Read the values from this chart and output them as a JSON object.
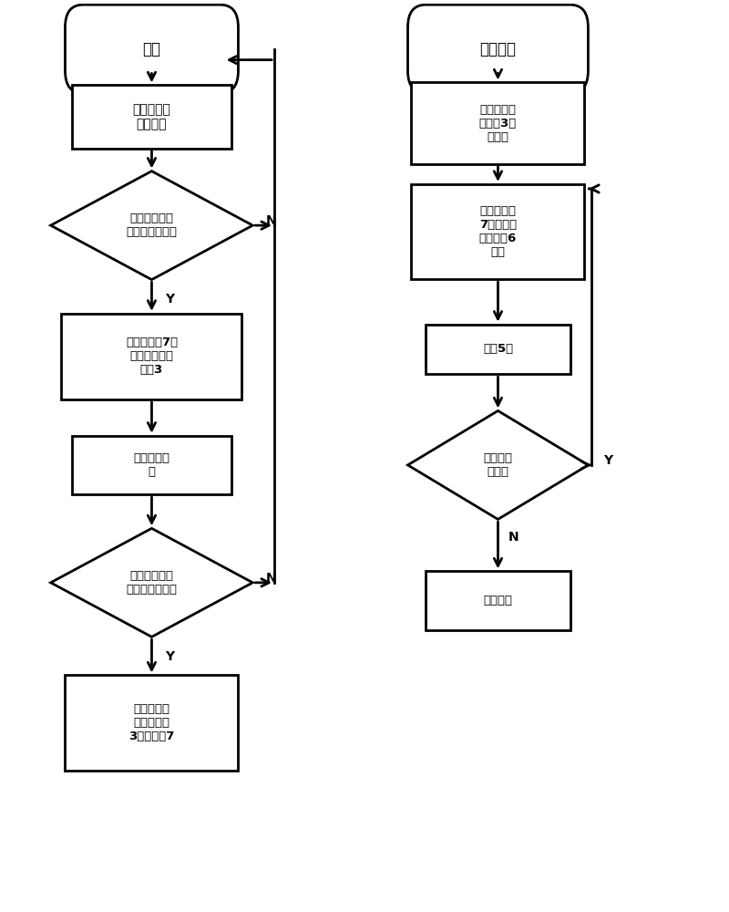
{
  "bg_color": "#ffffff",
  "line_color": "#000000",
  "text_color": "#000000",
  "left_start": "开始",
  "right_start": "中断开始",
  "node_l1": "踏板感应器\n采集信号",
  "node_l2": "踏板感应器感\n应到车辆进入？",
  "node_l3": "开启摄像头7、\n光束遮断式感\n应器3",
  "node_l4": "响应中断程\n序",
  "node_l5": "踏板感应器感\n应到车辆倒出？",
  "node_l6": "关闭光束遮\n断式感应器\n3，摄像头7",
  "node_r1": "光束遮断式\n感应器3采\n集信号",
  "node_r2": "开启摄像头\n7抓拍，开\n启报警器6\n报警",
  "node_r3": "延时5秒",
  "node_r4": "红外线被\n遮断？",
  "node_r5": "跳出中断",
  "label_Y": "Y",
  "label_N": "N"
}
